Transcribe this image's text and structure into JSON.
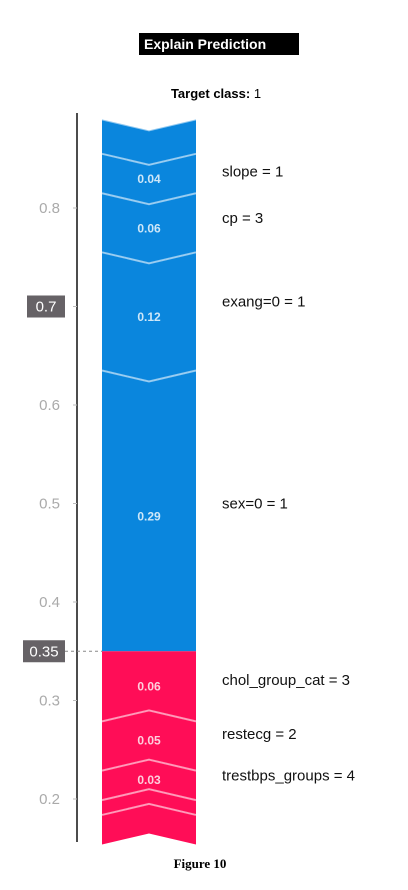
{
  "header": {
    "title": "Explain Prediction",
    "target_label": "Target class:",
    "target_value": "1"
  },
  "caption": "Figure 10",
  "colors": {
    "positive": "#0a86dd",
    "negative": "#ff0d57",
    "axis": "#111111",
    "tick_text": "#aaaaaa",
    "marker_bg": "#666266"
  },
  "chart_data": {
    "type": "bar",
    "orientation": "vertical-stacked",
    "ylim": [
      0.15,
      0.89
    ],
    "yticks": [
      0.2,
      0.3,
      0.4,
      0.5,
      0.6,
      0.7,
      0.8
    ],
    "ytick_labels": [
      "0.2",
      "0.3",
      "0.4",
      "0.5",
      "0.6",
      "0.7",
      "0.8"
    ],
    "markers": [
      {
        "value": 0.7,
        "label": "0.7"
      },
      {
        "value": 0.35,
        "label": "0.35"
      }
    ],
    "segments": [
      {
        "feature": "slope = 1",
        "value_label": "",
        "from": 0.855,
        "to": 0.89,
        "sign": "positive",
        "show_feature": true
      },
      {
        "feature": "cp = 3",
        "value_label": "0.04",
        "from": 0.815,
        "to": 0.855,
        "sign": "positive",
        "show_feature": true
      },
      {
        "feature": "exang=0 = 1",
        "value_label": "0.06",
        "from": 0.755,
        "to": 0.815,
        "sign": "positive",
        "show_feature": false
      },
      {
        "feature": "",
        "value_label": "0.12",
        "from": 0.635,
        "to": 0.755,
        "sign": "positive",
        "show_feature": false
      },
      {
        "feature": "sex=0 = 1",
        "value_label": "0.29",
        "from": 0.35,
        "to": 0.635,
        "sign": "positive",
        "show_feature": true
      },
      {
        "feature": "chol_group_cat = 3",
        "value_label": "0.06",
        "from": 0.29,
        "to": 0.35,
        "sign": "negative",
        "show_feature": true
      },
      {
        "feature": "restecg = 2",
        "value_label": "0.05",
        "from": 0.24,
        "to": 0.29,
        "sign": "negative",
        "show_feature": true
      },
      {
        "feature": "trestbps_groups = 4",
        "value_label": "0.03",
        "from": 0.21,
        "to": 0.24,
        "sign": "negative",
        "show_feature": true
      },
      {
        "feature": "",
        "value_label": "",
        "from": 0.195,
        "to": 0.21,
        "sign": "negative",
        "show_feature": false
      },
      {
        "feature": "",
        "value_label": "",
        "from": 0.165,
        "to": 0.195,
        "sign": "negative",
        "show_feature": false
      }
    ],
    "feature_labels": [
      {
        "text": "slope = 1",
        "at": 0.837
      },
      {
        "text": "cp = 3",
        "at": 0.79
      },
      {
        "text": "exang=0 = 1",
        "at": 0.705
      },
      {
        "text": "sex=0 = 1",
        "at": 0.5
      },
      {
        "text": "chol_group_cat = 3",
        "at": 0.321
      },
      {
        "text": "restecg = 2",
        "at": 0.266
      },
      {
        "text": "trestbps_groups = 4",
        "at": 0.224
      }
    ]
  }
}
